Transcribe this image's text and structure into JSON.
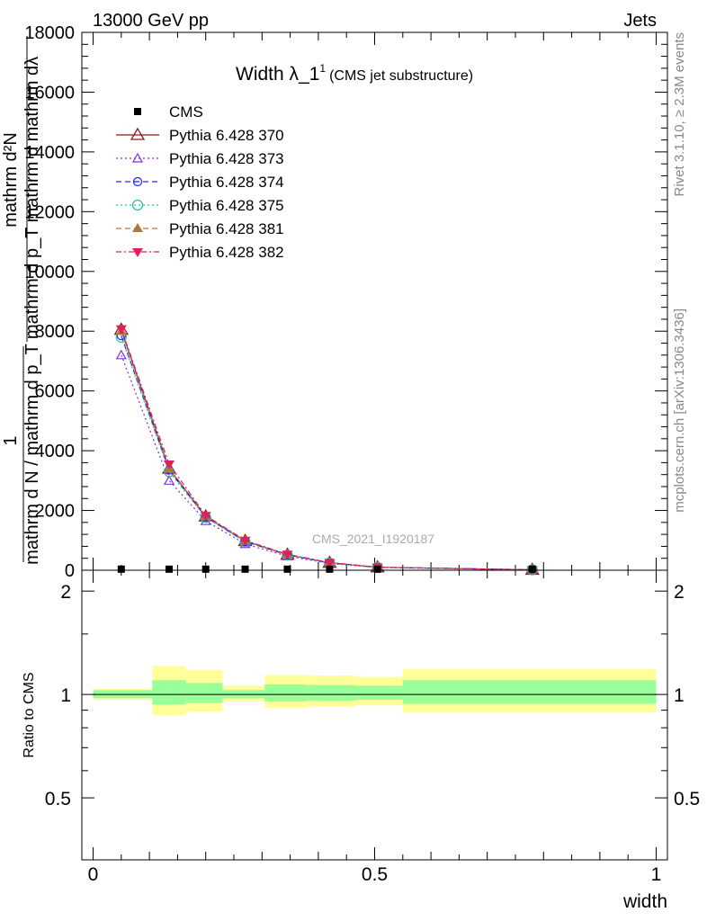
{
  "header": {
    "left": "13000 GeV pp",
    "right": "Jets"
  },
  "side_labels": {
    "rivet": "Rivet 3.1.10, ≥ 2.3M events",
    "mcplots": "mcplots.cern.ch [arXiv:1306.3436]"
  },
  "watermark": "CMS_2021_I1920187",
  "chart_data": [
    {
      "type": "line",
      "title_main": "Width λ_1",
      "title_sup": "1",
      "title_sub": "(CMS jet substructure)",
      "ylabel_top": "mathrm d²N",
      "ylabel_bottom": "mathrm d p_T mathrm d mathrm dλ",
      "ylabel_numer": "1",
      "ylabel_denom": "mathrm d N / mathrm d p_T",
      "ylim": [
        0,
        18000
      ],
      "yticks": [
        0,
        2000,
        4000,
        6000,
        8000,
        10000,
        12000,
        14000,
        16000,
        18000
      ],
      "ytick_labels": [
        "0",
        "2000",
        "4000",
        "6000",
        "8000",
        "10000",
        "12000",
        "14000",
        "16000",
        "18000"
      ],
      "xlim": [
        -0.02,
        1.02
      ],
      "x": [
        0.05,
        0.135,
        0.2,
        0.27,
        0.345,
        0.42,
        0.505,
        0.78
      ],
      "data_series": {
        "name": "CMS",
        "color": "#000000",
        "marker": "square",
        "values": [
          5,
          5,
          5,
          5,
          5,
          5,
          5,
          5
        ]
      },
      "series": [
        {
          "name": "Pythia 6.428 370",
          "color": "#8b1a1a",
          "marker": "triangle-open",
          "dash": "solid",
          "values": [
            8050,
            3400,
            1800,
            980,
            520,
            250,
            100,
            15
          ]
        },
        {
          "name": "Pythia 6.428 373",
          "color": "#8a2be2",
          "marker": "triangle-open-small",
          "dash": "dotted",
          "values": [
            7200,
            3000,
            1650,
            880,
            470,
            225,
            90,
            13
          ]
        },
        {
          "name": "Pythia 6.428 374",
          "color": "#2020ff",
          "marker": "circle-open",
          "dash": "dashed",
          "values": [
            7850,
            3350,
            1780,
            960,
            510,
            245,
            98,
            15
          ]
        },
        {
          "name": "Pythia 6.428 375",
          "color": "#20c0a0",
          "marker": "circle-open-large",
          "dash": "dotted",
          "values": [
            7800,
            3300,
            1760,
            950,
            505,
            242,
            97,
            15
          ]
        },
        {
          "name": "Pythia 6.428 381",
          "color": "#b07840",
          "marker": "triangle-filled",
          "dash": "dashed",
          "values": [
            8000,
            3380,
            1790,
            975,
            518,
            248,
            99,
            15
          ]
        },
        {
          "name": "Pythia 6.428 382",
          "color": "#e0205a",
          "marker": "triangle-down-filled",
          "dash": "dashdot",
          "values": [
            8080,
            3550,
            1830,
            1000,
            535,
            260,
            104,
            16
          ]
        }
      ]
    },
    {
      "type": "area",
      "ylabel": "Ratio to CMS",
      "xlabel": "width",
      "ylim": [
        0.33,
        2.3
      ],
      "ytick_labels": [
        "0.5",
        "1",
        "2"
      ],
      "yticks": [
        0.5,
        1,
        2
      ],
      "xticks": [
        0,
        0.5,
        1
      ],
      "xtick_labels": [
        "0",
        "0.5",
        "1"
      ],
      "bins": [
        {
          "x0": 0.0,
          "x1": 0.105,
          "inner": [
            0.975,
            1.03
          ],
          "outer": [
            0.965,
            1.04
          ]
        },
        {
          "x0": 0.105,
          "x1": 0.165,
          "inner": [
            0.935,
            1.1
          ],
          "outer": [
            0.87,
            1.21
          ]
        },
        {
          "x0": 0.165,
          "x1": 0.23,
          "inner": [
            0.945,
            1.08
          ],
          "outer": [
            0.89,
            1.18
          ]
        },
        {
          "x0": 0.23,
          "x1": 0.305,
          "inner": [
            0.975,
            1.03
          ],
          "outer": [
            0.955,
            1.06
          ]
        },
        {
          "x0": 0.305,
          "x1": 0.38,
          "inner": [
            0.955,
            1.07
          ],
          "outer": [
            0.915,
            1.14
          ]
        },
        {
          "x0": 0.38,
          "x1": 0.465,
          "inner": [
            0.96,
            1.065
          ],
          "outer": [
            0.92,
            1.135
          ]
        },
        {
          "x0": 0.465,
          "x1": 0.55,
          "inner": [
            0.965,
            1.06
          ],
          "outer": [
            0.93,
            1.125
          ]
        },
        {
          "x0": 0.55,
          "x1": 1.0,
          "inner": [
            0.94,
            1.1
          ],
          "outer": [
            0.885,
            1.185
          ]
        }
      ]
    }
  ]
}
